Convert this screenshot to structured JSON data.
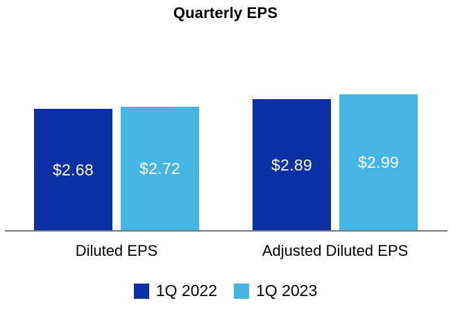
{
  "page": {
    "background_color": "#ffffff"
  },
  "chart_data": {
    "type": "bar",
    "title": "Quarterly EPS",
    "categories": [
      "Diluted EPS",
      "Adjusted Diluted EPS"
    ],
    "series": [
      {
        "name": "1Q 2022",
        "color": "#0B2FA5",
        "values": [
          2.68,
          2.89
        ],
        "display": [
          "$2.68",
          "$2.89"
        ]
      },
      {
        "name": "1Q 2023",
        "color": "#45B5E3",
        "values": [
          2.72,
          2.99
        ],
        "display": [
          "$2.72",
          "$2.99"
        ]
      }
    ],
    "value_labels_inside_bars": true,
    "value_label_color": "#ffffff",
    "axis_line_color": "#7a7a7a",
    "xlabel": "",
    "ylabel": "",
    "ylim": [
      0,
      3.2
    ],
    "grid": false,
    "legend_position": "bottom"
  }
}
